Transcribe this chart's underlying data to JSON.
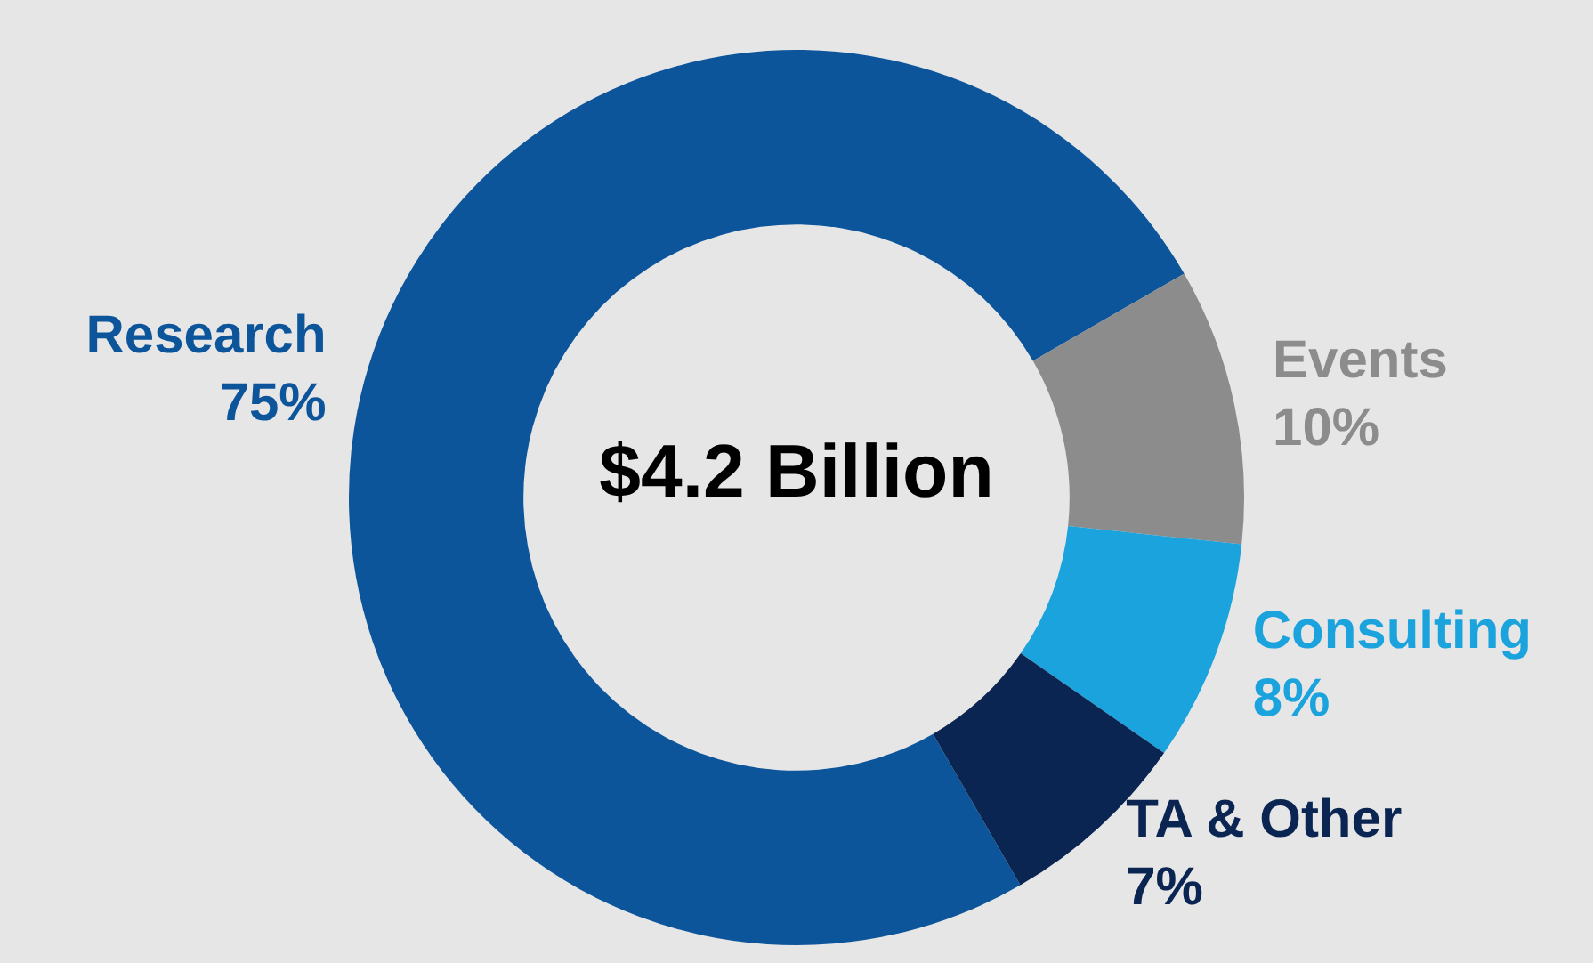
{
  "chart_data": {
    "type": "donut",
    "categories": [
      "Research",
      "Events",
      "Consulting",
      "TA & Other"
    ],
    "values": [
      75,
      10,
      8,
      7
    ],
    "value_labels": [
      "75%",
      "10%",
      "8%",
      "7%"
    ],
    "colors": [
      "#0d559b",
      "#8c8c8c",
      "#1ba3de",
      "#0b2552"
    ],
    "annotations": [
      "$4.2 Billion"
    ],
    "legend": false
  }
}
